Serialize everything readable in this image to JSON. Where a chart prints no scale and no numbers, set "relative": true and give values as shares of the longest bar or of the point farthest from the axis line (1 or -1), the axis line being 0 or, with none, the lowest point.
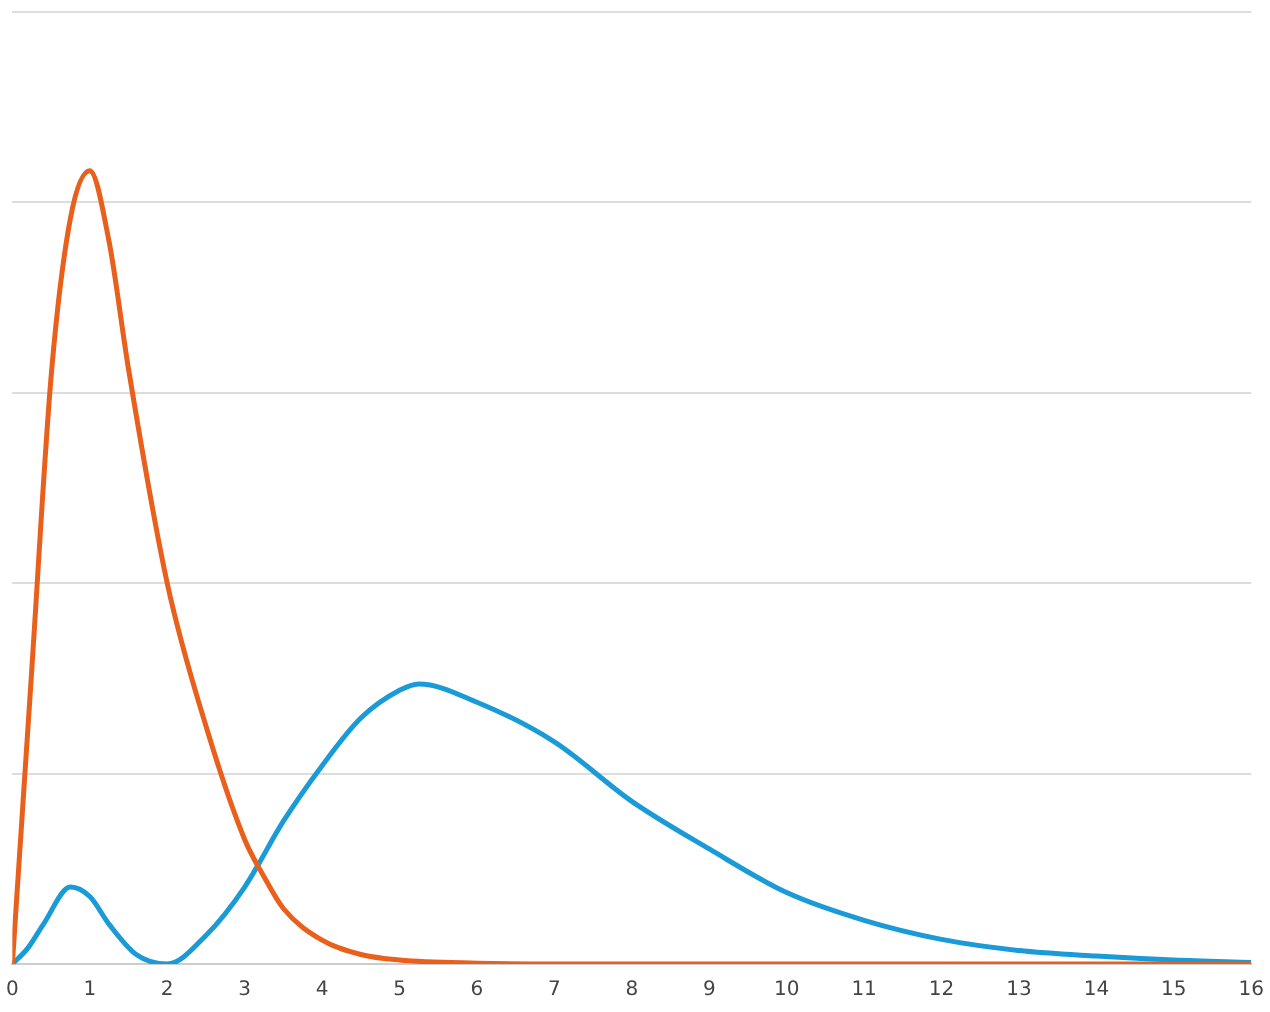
{
  "chart_data": {
    "type": "line",
    "relative": true,
    "xlim": [
      0,
      16
    ],
    "xticks": [
      0,
      1,
      2,
      3,
      4,
      5,
      6,
      7,
      8,
      9,
      10,
      11,
      12,
      13,
      14,
      15,
      16
    ],
    "grid": "y",
    "legend": false,
    "marker": "none",
    "line_style": "solid",
    "series": [
      {
        "color": "#e8601c",
        "x": [
          0,
          0.25,
          0.5,
          0.75,
          1,
          1.25,
          1.5,
          2,
          2.5,
          3,
          3.25,
          3.5,
          4,
          4.5,
          5,
          6,
          7,
          8,
          16
        ],
        "values": [
          0,
          0.37,
          0.74,
          0.94,
          1,
          0.91,
          0.75,
          0.48,
          0.3,
          0.157,
          0.11,
          0.07,
          0.03,
          0.012,
          0.005,
          0.001,
          0,
          0,
          0
        ]
      },
      {
        "color": "#1a9bd7",
        "x": [
          0,
          0.2,
          0.4,
          0.75,
          1,
          1.25,
          1.6,
          2,
          2.5,
          3,
          3.5,
          4,
          4.5,
          5,
          5.25,
          6,
          7,
          8,
          9,
          10,
          11,
          12,
          13,
          14,
          15,
          16
        ],
        "values": [
          0,
          0.02,
          0.05,
          0.097,
          0.085,
          0.05,
          0.012,
          0,
          0.036,
          0.097,
          0.18,
          0.25,
          0.31,
          0.345,
          0.353,
          0.33,
          0.28,
          0.205,
          0.145,
          0.09,
          0.055,
          0.031,
          0.017,
          0.01,
          0.005,
          0.002
        ]
      }
    ]
  }
}
